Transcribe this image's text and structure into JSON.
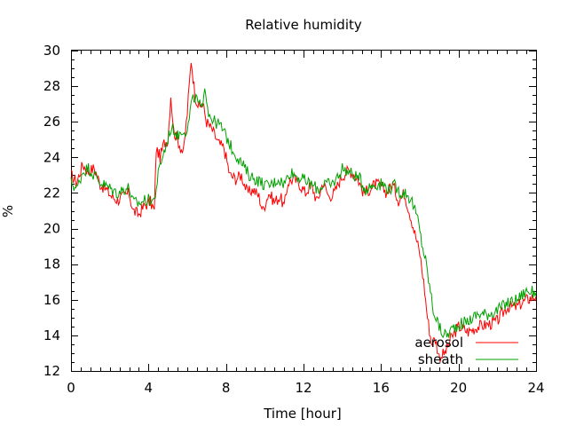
{
  "chart_data": {
    "type": "line",
    "title": "Relative humidity",
    "xlabel": "Time [hour]",
    "ylabel": "%",
    "xlim": [
      0,
      24
    ],
    "ylim": [
      12,
      30
    ],
    "x_ticks": [
      0,
      4,
      8,
      12,
      16,
      20,
      24
    ],
    "y_ticks": [
      12,
      14,
      16,
      18,
      20,
      22,
      24,
      26,
      28,
      30
    ],
    "grid": false,
    "legend_position": "bottom-right",
    "series": [
      {
        "name": "aerosol",
        "color": "#ff0000",
        "points": [
          [
            0,
            23.0
          ],
          [
            0.3,
            22.6
          ],
          [
            0.6,
            23.6
          ],
          [
            0.9,
            23.2
          ],
          [
            1.2,
            23.4
          ],
          [
            1.5,
            22.5
          ],
          [
            1.8,
            22.2
          ],
          [
            2.1,
            21.8
          ],
          [
            2.4,
            21.6
          ],
          [
            2.7,
            21.8
          ],
          [
            3.0,
            22.0
          ],
          [
            3.2,
            21.0
          ],
          [
            3.5,
            20.8
          ],
          [
            3.8,
            21.3
          ],
          [
            4.1,
            21.5
          ],
          [
            4.3,
            21.0
          ],
          [
            4.4,
            24.5
          ],
          [
            4.6,
            24.0
          ],
          [
            4.8,
            24.8
          ],
          [
            5.0,
            25.0
          ],
          [
            5.15,
            27.5
          ],
          [
            5.3,
            25.5
          ],
          [
            5.5,
            25.0
          ],
          [
            5.8,
            24.2
          ],
          [
            6.0,
            26.5
          ],
          [
            6.2,
            29.5
          ],
          [
            6.4,
            27.5
          ],
          [
            6.6,
            26.8
          ],
          [
            6.8,
            27.0
          ],
          [
            7.0,
            26.0
          ],
          [
            7.3,
            25.5
          ],
          [
            7.6,
            24.8
          ],
          [
            7.9,
            24.5
          ],
          [
            8.2,
            23.0
          ],
          [
            8.5,
            22.8
          ],
          [
            8.8,
            23.0
          ],
          [
            9.1,
            22.0
          ],
          [
            9.4,
            22.2
          ],
          [
            9.7,
            21.8
          ],
          [
            9.9,
            21.0
          ],
          [
            10.2,
            22.0
          ],
          [
            10.5,
            21.5
          ],
          [
            10.8,
            21.8
          ],
          [
            11.0,
            21.2
          ],
          [
            11.2,
            22.6
          ],
          [
            11.5,
            22.8
          ],
          [
            11.8,
            22.5
          ],
          [
            12.1,
            22.0
          ],
          [
            12.4,
            22.5
          ],
          [
            12.7,
            21.5
          ],
          [
            13.0,
            22.6
          ],
          [
            13.3,
            21.8
          ],
          [
            13.6,
            22.0
          ],
          [
            13.9,
            22.8
          ],
          [
            14.2,
            23.2
          ],
          [
            14.5,
            23.2
          ],
          [
            14.8,
            22.8
          ],
          [
            15.1,
            22.0
          ],
          [
            15.4,
            22.2
          ],
          [
            15.7,
            22.5
          ],
          [
            16.0,
            22.4
          ],
          [
            16.3,
            22.0
          ],
          [
            16.6,
            22.5
          ],
          [
            16.9,
            21.6
          ],
          [
            17.2,
            22.0
          ],
          [
            17.5,
            20.8
          ],
          [
            17.8,
            19.5
          ],
          [
            18.0,
            18.6
          ],
          [
            18.2,
            17.0
          ],
          [
            18.4,
            15.0
          ],
          [
            18.6,
            13.6
          ],
          [
            18.8,
            13.8
          ],
          [
            19.0,
            12.8
          ],
          [
            19.3,
            13.0
          ],
          [
            19.6,
            13.8
          ],
          [
            20.0,
            14.5
          ],
          [
            20.5,
            14.2
          ],
          [
            21.0,
            14.5
          ],
          [
            21.5,
            14.6
          ],
          [
            22.0,
            14.8
          ],
          [
            22.5,
            15.6
          ],
          [
            23.0,
            15.6
          ],
          [
            23.5,
            16.0
          ],
          [
            24.0,
            16.2
          ]
        ]
      },
      {
        "name": "sheath",
        "color": "#00a000",
        "points": [
          [
            0,
            22.6
          ],
          [
            0.3,
            22.2
          ],
          [
            0.6,
            23.2
          ],
          [
            0.9,
            23.4
          ],
          [
            1.2,
            23.0
          ],
          [
            1.5,
            22.6
          ],
          [
            1.8,
            22.4
          ],
          [
            2.1,
            22.2
          ],
          [
            2.4,
            22.0
          ],
          [
            2.7,
            22.2
          ],
          [
            3.0,
            22.3
          ],
          [
            3.2,
            21.5
          ],
          [
            3.5,
            21.4
          ],
          [
            3.8,
            21.6
          ],
          [
            4.1,
            21.6
          ],
          [
            4.3,
            21.6
          ],
          [
            4.5,
            23.0
          ],
          [
            4.7,
            24.0
          ],
          [
            4.9,
            24.6
          ],
          [
            5.1,
            25.5
          ],
          [
            5.3,
            25.6
          ],
          [
            5.5,
            25.2
          ],
          [
            5.8,
            25.6
          ],
          [
            6.0,
            25.4
          ],
          [
            6.2,
            27.0
          ],
          [
            6.4,
            27.4
          ],
          [
            6.6,
            27.0
          ],
          [
            6.8,
            26.6
          ],
          [
            6.9,
            28.2
          ],
          [
            7.1,
            26.5
          ],
          [
            7.4,
            26.0
          ],
          [
            7.7,
            25.8
          ],
          [
            8.0,
            25.2
          ],
          [
            8.3,
            24.5
          ],
          [
            8.6,
            24.0
          ],
          [
            8.9,
            23.5
          ],
          [
            9.2,
            23.0
          ],
          [
            9.5,
            22.8
          ],
          [
            9.8,
            22.6
          ],
          [
            10.1,
            22.4
          ],
          [
            10.4,
            22.5
          ],
          [
            10.7,
            22.8
          ],
          [
            11.0,
            22.5
          ],
          [
            11.3,
            23.2
          ],
          [
            11.6,
            23.0
          ],
          [
            11.9,
            22.8
          ],
          [
            12.2,
            22.6
          ],
          [
            12.5,
            22.4
          ],
          [
            12.8,
            22.2
          ],
          [
            13.1,
            22.6
          ],
          [
            13.4,
            22.4
          ],
          [
            13.7,
            22.8
          ],
          [
            14.0,
            23.4
          ],
          [
            14.3,
            23.2
          ],
          [
            14.6,
            23.0
          ],
          [
            14.9,
            22.8
          ],
          [
            15.2,
            22.2
          ],
          [
            15.5,
            22.4
          ],
          [
            15.8,
            22.5
          ],
          [
            16.1,
            22.5
          ],
          [
            16.4,
            22.2
          ],
          [
            16.7,
            22.4
          ],
          [
            17.0,
            22.0
          ],
          [
            17.3,
            22.0
          ],
          [
            17.6,
            21.5
          ],
          [
            17.9,
            20.5
          ],
          [
            18.1,
            19.2
          ],
          [
            18.3,
            18.2
          ],
          [
            18.5,
            16.8
          ],
          [
            18.7,
            15.4
          ],
          [
            18.9,
            14.8
          ],
          [
            19.1,
            14.2
          ],
          [
            19.4,
            14.0
          ],
          [
            19.7,
            14.4
          ],
          [
            20.0,
            14.6
          ],
          [
            20.5,
            14.8
          ],
          [
            21.0,
            15.2
          ],
          [
            21.5,
            15.2
          ],
          [
            22.0,
            15.4
          ],
          [
            22.5,
            15.8
          ],
          [
            23.0,
            16.0
          ],
          [
            23.5,
            16.5
          ],
          [
            24.0,
            16.4
          ]
        ]
      }
    ]
  }
}
